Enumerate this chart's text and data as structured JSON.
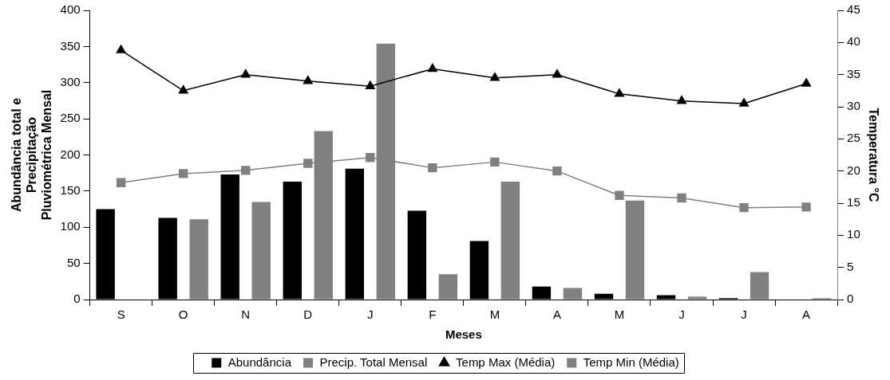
{
  "chart_data": {
    "type": "bar",
    "xlabel": "Meses",
    "ylabel": "Abundância total e\nPrecipitação\nPluviométrica Mensal",
    "y2label": "Temperatura °C",
    "categories": [
      "S",
      "O",
      "N",
      "D",
      "J",
      "F",
      "M",
      "A",
      "M",
      "J",
      "J",
      "A"
    ],
    "series": [
      {
        "name": "Abundância",
        "color": "#000000",
        "values": [
          125,
          113,
          173,
          163,
          181,
          123,
          81,
          18,
          8,
          6,
          2,
          0
        ]
      },
      {
        "name": "Precip. Total Mensal",
        "color": "#808080",
        "values": [
          0,
          111,
          135,
          233,
          354,
          35,
          163,
          16,
          137,
          4,
          38,
          2
        ]
      },
      {
        "name": "Temp Max (Média)",
        "type": "line",
        "axis": "y2",
        "marker": "triangle",
        "color": "#000000",
        "values": [
          38.8,
          32.5,
          35,
          34,
          33.2,
          35.9,
          34.5,
          35,
          32,
          30.9,
          30.5,
          33.6
        ]
      },
      {
        "name": "Temp Min (Média)",
        "type": "line",
        "axis": "y2",
        "marker": "square",
        "color": "#808080",
        "values": [
          18.2,
          19.6,
          20.1,
          21.2,
          22.1,
          20.5,
          21.4,
          20,
          16.2,
          15.8,
          14.3,
          14.4
        ]
      }
    ],
    "ylim": [
      0,
      400
    ],
    "yticks": [
      0,
      50,
      100,
      150,
      200,
      250,
      300,
      350,
      400
    ],
    "y2lim": [
      0,
      45
    ],
    "y2ticks": [
      0,
      5,
      10,
      15,
      20,
      25,
      30,
      35,
      40,
      45
    ],
    "grid": false,
    "legend": "bottom",
    "line_style": "solid"
  }
}
